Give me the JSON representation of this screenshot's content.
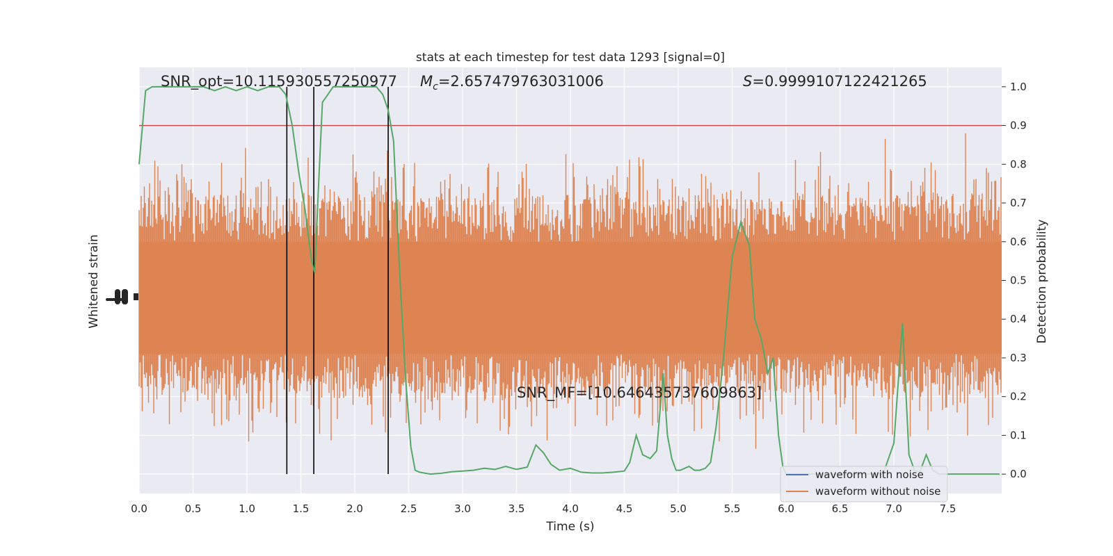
{
  "chart_data": {
    "type": "line",
    "title": "stats at each timestep for test data 1293 [signal=0]",
    "xlabel": "Time (s)",
    "ylabel_left": "Whitened strain",
    "ylabel_right": "Detection probability",
    "xlim": [
      0,
      8
    ],
    "ylim_right": [
      -0.05,
      1.05
    ],
    "x_ticks": [
      0.0,
      0.5,
      1.0,
      1.5,
      2.0,
      2.5,
      3.0,
      3.5,
      4.0,
      4.5,
      5.0,
      5.5,
      6.0,
      6.5,
      7.0,
      7.5
    ],
    "x_tick_labels": [
      "0.0",
      "0.5",
      "1.0",
      "1.5",
      "2.0",
      "2.5",
      "3.0",
      "3.5",
      "4.0",
      "4.5",
      "5.0",
      "5.5",
      "6.0",
      "6.5",
      "7.0",
      "7.5"
    ],
    "y_right_ticks": [
      0.0,
      0.1,
      0.2,
      0.3,
      0.4,
      0.5,
      0.6,
      0.7,
      0.8,
      0.9,
      1.0
    ],
    "y_right_tick_labels": [
      "0.0",
      "0.1",
      "0.2",
      "0.3",
      "0.4",
      "0.5",
      "0.6",
      "0.7",
      "0.8",
      "0.9",
      "1.0"
    ],
    "grid": true,
    "legend_position": "lower-right",
    "annotations": {
      "snr_opt": "SNR_opt=10.115930557250977",
      "mc_symbol": "M",
      "mc_sub": "c",
      "mc_value": "=2.657479763031006",
      "s_symbol": "S",
      "s_value": "=0.9999107122421265",
      "snr_mf": "SNR_MF=[10.646435737609863]"
    },
    "threshold": {
      "value": 0.9,
      "color": "#c44e52"
    },
    "vertical_lines_x": [
      1.37,
      1.62,
      2.31
    ],
    "series": [
      {
        "name": "waveform with noise",
        "color": "#4c72b0",
        "values": []
      },
      {
        "name": "waveform without noise",
        "color": "#dd8452",
        "values": []
      },
      {
        "color": "#55a868",
        "x": [
          0.0,
          0.06,
          0.12,
          0.2,
          0.3,
          0.4,
          0.5,
          0.6,
          0.7,
          0.8,
          0.9,
          1.0,
          1.1,
          1.2,
          1.3,
          1.36,
          1.42,
          1.48,
          1.54,
          1.6,
          1.63,
          1.66,
          1.7,
          1.8,
          1.9,
          2.0,
          2.1,
          2.2,
          2.26,
          2.31,
          2.36,
          2.42,
          2.47,
          2.52,
          2.56,
          2.6,
          2.7,
          2.8,
          2.9,
          3.0,
          3.1,
          3.2,
          3.3,
          3.4,
          3.5,
          3.6,
          3.68,
          3.75,
          3.82,
          3.9,
          4.0,
          4.1,
          4.2,
          4.3,
          4.4,
          4.5,
          4.55,
          4.61,
          4.67,
          4.74,
          4.8,
          4.86,
          4.9,
          4.94,
          4.98,
          5.02,
          5.06,
          5.1,
          5.15,
          5.2,
          5.25,
          5.3,
          5.35,
          5.42,
          5.5,
          5.58,
          5.66,
          5.71,
          5.77,
          5.83,
          5.88,
          5.93,
          5.97,
          6.0,
          6.05,
          6.1,
          6.2,
          6.3,
          6.4,
          6.5,
          6.6,
          6.7,
          6.8,
          6.9,
          7.0,
          7.08,
          7.14,
          7.19,
          7.24,
          7.3,
          7.36,
          7.42,
          7.48,
          7.55,
          7.6,
          7.7,
          7.8,
          7.9,
          7.98
        ],
        "values": [
          0.8,
          0.99,
          1.0,
          1.0,
          1.0,
          1.0,
          1.0,
          1.0,
          0.99,
          1.0,
          0.99,
          1.0,
          0.99,
          1.0,
          1.0,
          0.98,
          0.9,
          0.78,
          0.68,
          0.55,
          0.52,
          0.72,
          0.96,
          1.0,
          1.0,
          1.0,
          1.0,
          1.0,
          0.98,
          0.94,
          0.86,
          0.5,
          0.25,
          0.07,
          0.01,
          0.005,
          0.0,
          0.002,
          0.006,
          0.008,
          0.01,
          0.015,
          0.012,
          0.02,
          0.012,
          0.018,
          0.075,
          0.055,
          0.025,
          0.01,
          0.015,
          0.005,
          0.003,
          0.003,
          0.005,
          0.008,
          0.03,
          0.1,
          0.05,
          0.04,
          0.06,
          0.26,
          0.1,
          0.04,
          0.01,
          0.01,
          0.015,
          0.02,
          0.01,
          0.01,
          0.015,
          0.03,
          0.12,
          0.3,
          0.56,
          0.65,
          0.59,
          0.4,
          0.35,
          0.26,
          0.3,
          0.1,
          0.02,
          0.0,
          0.0,
          0.0,
          0.0,
          0.0,
          0.0,
          0.0,
          0.0,
          0.0,
          0.0,
          0.0,
          0.08,
          0.39,
          0.05,
          0.01,
          0.005,
          0.05,
          0.01,
          0.0,
          0.0,
          0.0,
          0.0,
          0.0,
          0.0,
          0.0,
          0.0
        ]
      }
    ]
  }
}
